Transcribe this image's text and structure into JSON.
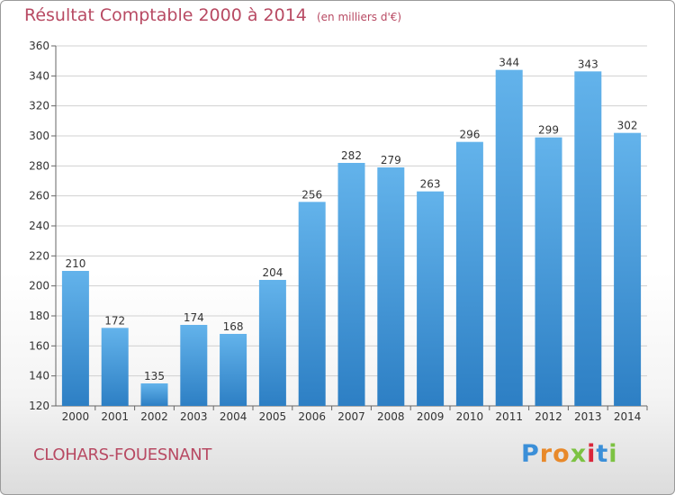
{
  "title": "Résultat Comptable 2000 à 2014",
  "subtitle": "(en milliers d'€)",
  "commune": "CLOHARS-FOUESNANT",
  "logo": {
    "letters": [
      "P",
      "r",
      "o",
      "x",
      "i",
      "t",
      "i"
    ],
    "colors": [
      "#3b8fd8",
      "#e8892a",
      "#e8892a",
      "#7cc242",
      "#d9263a",
      "#3b8fd8",
      "#7cc242"
    ]
  },
  "colors": {
    "bar_top": "#63b3eb",
    "bar_bottom": "#2d7fc4",
    "grid": "#d0d0d0",
    "title": "#b84a63"
  },
  "chart_data": {
    "type": "bar",
    "categories": [
      "2000",
      "2001",
      "2002",
      "2003",
      "2004",
      "2005",
      "2006",
      "2007",
      "2008",
      "2009",
      "2010",
      "2011",
      "2012",
      "2013",
      "2014"
    ],
    "values": [
      210,
      172,
      135,
      174,
      168,
      204,
      256,
      282,
      279,
      263,
      296,
      344,
      299,
      343,
      302
    ],
    "ylim": [
      120,
      360
    ],
    "yticks": [
      120,
      140,
      160,
      180,
      200,
      220,
      240,
      260,
      280,
      300,
      320,
      340,
      360
    ],
    "grid": true
  }
}
